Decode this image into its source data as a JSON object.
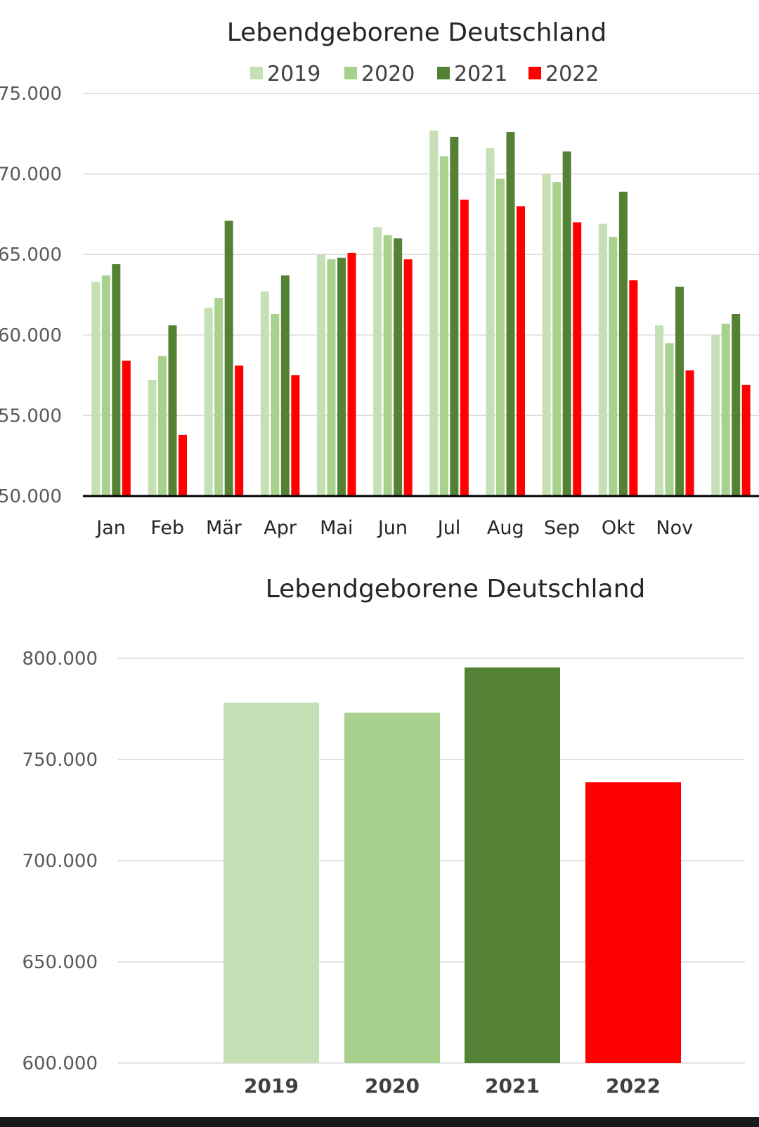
{
  "chart_data": [
    {
      "type": "bar",
      "title": "Lebendgeborene Deutschland",
      "xlabel": "",
      "ylabel": "",
      "ylim": [
        50000,
        75000
      ],
      "yticks": [
        "50.000",
        "55.000",
        "60.000",
        "65.000",
        "70.000",
        "75.000"
      ],
      "ytick_values": [
        50000,
        55000,
        60000,
        65000,
        70000,
        75000
      ],
      "categories": [
        "Jan",
        "Feb",
        "Mär",
        "Apr",
        "Mai",
        "Jun",
        "Jul",
        "Aug",
        "Sep",
        "Okt",
        "Nov",
        ""
      ],
      "legend_position": "top",
      "grid": true,
      "series": [
        {
          "name": "2019",
          "color": "#c5e0b4",
          "values": [
            63300,
            57200,
            61700,
            62700,
            65000,
            66700,
            72700,
            71600,
            70000,
            66900,
            60600,
            60000
          ]
        },
        {
          "name": "2020",
          "color": "#a9d18e",
          "values": [
            63700,
            58700,
            62300,
            61300,
            64700,
            66200,
            71100,
            69700,
            69500,
            66100,
            59500,
            60700
          ]
        },
        {
          "name": "2021",
          "color": "#548235",
          "values": [
            64400,
            60600,
            67100,
            63700,
            64800,
            66000,
            72300,
            72600,
            71400,
            68900,
            63000,
            61300
          ]
        },
        {
          "name": "2022",
          "color": "#ff0000",
          "values": [
            58400,
            53800,
            58100,
            57500,
            65100,
            64700,
            68400,
            68000,
            67000,
            63400,
            57800,
            56900
          ]
        }
      ]
    },
    {
      "type": "bar",
      "title": "Lebendgeborene Deutschland",
      "xlabel": "",
      "ylabel": "",
      "ylim": [
        600000,
        800000
      ],
      "yticks": [
        "600.000",
        "650.000",
        "700.000",
        "750.000",
        "800.000"
      ],
      "ytick_values": [
        600000,
        650000,
        700000,
        750000,
        800000
      ],
      "categories": [
        "2019",
        "2020",
        "2021",
        "2022"
      ],
      "grid": true,
      "values": [
        778100,
        773100,
        795500,
        738800
      ],
      "colors": [
        "#c5e0b4",
        "#a9d18e",
        "#548235",
        "#ff0000"
      ]
    }
  ]
}
